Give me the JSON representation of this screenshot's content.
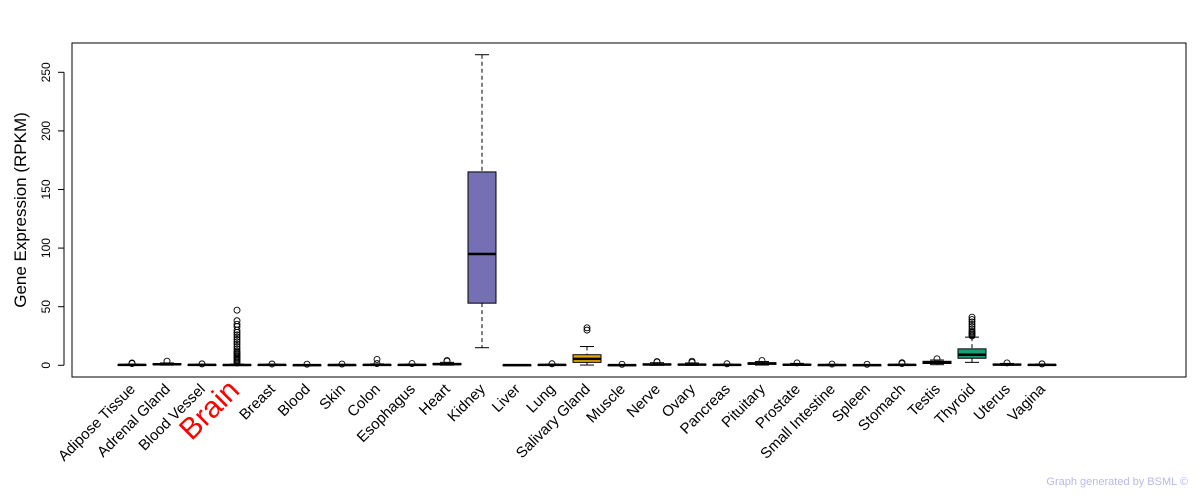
{
  "chart_data": {
    "type": "box",
    "ylabel": "Gene Expression (RPKM)",
    "ylim": [
      -10,
      275
    ],
    "yticks": [
      0,
      50,
      100,
      150,
      200,
      250
    ],
    "highlight": "Brain",
    "highlight_color": "#ff0000",
    "categories": [
      "Adipose Tissue",
      "Adrenal Gland",
      "Blood Vessel",
      "Brain",
      "Breast",
      "Blood",
      "Skin",
      "Colon",
      "Esophagus",
      "Heart",
      "Kidney",
      "Liver",
      "Lung",
      "Salivary Gland",
      "Muscle",
      "Nerve",
      "Ovary",
      "Pancreas",
      "Pituitary",
      "Prostate",
      "Small Intestine",
      "Spleen",
      "Stomach",
      "Testis",
      "Thyroid",
      "Uterus",
      "Vagina"
    ],
    "boxes": [
      {
        "name": "Adipose Tissue",
        "color": "#ffffff",
        "q1": 0.1,
        "median": 0.3,
        "q3": 0.6,
        "wlo": 0,
        "whi": 1.0,
        "outliers": [
          1.5,
          2.0
        ]
      },
      {
        "name": "Adrenal Gland",
        "color": "#ffffff",
        "q1": 0.5,
        "median": 0.9,
        "q3": 1.3,
        "wlo": 0.1,
        "whi": 2.0,
        "outliers": [
          3.5
        ]
      },
      {
        "name": "Blood Vessel",
        "color": "#ffffff",
        "q1": 0.1,
        "median": 0.3,
        "q3": 0.5,
        "wlo": 0,
        "whi": 0.9,
        "outliers": [
          1.2
        ]
      },
      {
        "name": "Brain",
        "color": "#ffffff",
        "q1": 0.1,
        "median": 0.2,
        "q3": 0.5,
        "wlo": 0,
        "whi": 1.0,
        "outliers": [
          2,
          3,
          4,
          5,
          6,
          7,
          8,
          9,
          10,
          11,
          12,
          14,
          16,
          18,
          20,
          22,
          24,
          26,
          28,
          30,
          33,
          35,
          38,
          47
        ]
      },
      {
        "name": "Breast",
        "color": "#ffffff",
        "q1": 0.1,
        "median": 0.3,
        "q3": 0.5,
        "wlo": 0,
        "whi": 0.9,
        "outliers": [
          1.1
        ]
      },
      {
        "name": "Blood",
        "color": "#ffffff",
        "q1": 0,
        "median": 0.1,
        "q3": 0.3,
        "wlo": 0,
        "whi": 0.6,
        "outliers": [
          0.9
        ]
      },
      {
        "name": "Skin",
        "color": "#ffffff",
        "q1": 0.1,
        "median": 0.2,
        "q3": 0.4,
        "wlo": 0,
        "whi": 0.8,
        "outliers": [
          1.0
        ]
      },
      {
        "name": "Colon",
        "color": "#ffffff",
        "q1": 0.1,
        "median": 0.3,
        "q3": 0.6,
        "wlo": 0,
        "whi": 1.2,
        "outliers": [
          1.5,
          5
        ]
      },
      {
        "name": "Esophagus",
        "color": "#ffffff",
        "q1": 0.1,
        "median": 0.3,
        "q3": 0.6,
        "wlo": 0,
        "whi": 1.0,
        "outliers": [
          1.5
        ]
      },
      {
        "name": "Heart",
        "color": "#ffffff",
        "q1": 0.5,
        "median": 1.0,
        "q3": 1.6,
        "wlo": 0.1,
        "whi": 2.5,
        "outliers": [
          3.5,
          4.0
        ]
      },
      {
        "name": "Kidney",
        "color": "#7570b3",
        "q1": 53,
        "median": 95,
        "q3": 165,
        "wlo": 15,
        "whi": 265,
        "outliers": []
      },
      {
        "name": "Liver",
        "color": "#ffffff",
        "q1": 0,
        "median": 0.1,
        "q3": 0.3,
        "wlo": 0,
        "whi": 0.6,
        "outliers": []
      },
      {
        "name": "Lung",
        "color": "#ffffff",
        "q1": 0.1,
        "median": 0.3,
        "q3": 0.6,
        "wlo": 0,
        "whi": 1.0,
        "outliers": [
          1.3
        ]
      },
      {
        "name": "Salivary Gland",
        "color": "#e6ab02",
        "q1": 2.5,
        "median": 5.5,
        "q3": 9,
        "wlo": 0.2,
        "whi": 16,
        "outliers": [
          30,
          32
        ]
      },
      {
        "name": "Muscle",
        "color": "#ffffff",
        "q1": 0,
        "median": 0.1,
        "q3": 0.3,
        "wlo": 0,
        "whi": 0.6,
        "outliers": [
          0.8
        ]
      },
      {
        "name": "Nerve",
        "color": "#ffffff",
        "q1": 0.3,
        "median": 0.7,
        "q3": 1.2,
        "wlo": 0,
        "whi": 2.2,
        "outliers": [
          2.8,
          3.2
        ]
      },
      {
        "name": "Ovary",
        "color": "#ffffff",
        "q1": 0.3,
        "median": 0.6,
        "q3": 1.0,
        "wlo": 0,
        "whi": 2.0,
        "outliers": [
          2.5,
          3.5
        ]
      },
      {
        "name": "Pancreas",
        "color": "#ffffff",
        "q1": 0.1,
        "median": 0.3,
        "q3": 0.6,
        "wlo": 0,
        "whi": 1.0,
        "outliers": [
          1.3
        ]
      },
      {
        "name": "Pituitary",
        "color": "#ffffff",
        "q1": 0.8,
        "median": 1.5,
        "q3": 2.2,
        "wlo": 0.2,
        "whi": 3.2,
        "outliers": [
          4.0
        ]
      },
      {
        "name": "Prostate",
        "color": "#ffffff",
        "q1": 0.2,
        "median": 0.5,
        "q3": 0.9,
        "wlo": 0,
        "whi": 1.6,
        "outliers": [
          2.0
        ]
      },
      {
        "name": "Small Intestine",
        "color": "#ffffff",
        "q1": 0.1,
        "median": 0.2,
        "q3": 0.4,
        "wlo": 0,
        "whi": 0.8,
        "outliers": [
          1.0
        ]
      },
      {
        "name": "Spleen",
        "color": "#ffffff",
        "q1": 0,
        "median": 0.1,
        "q3": 0.3,
        "wlo": 0,
        "whi": 0.6,
        "outliers": [
          0.8
        ]
      },
      {
        "name": "Stomach",
        "color": "#ffffff",
        "q1": 0.1,
        "median": 0.3,
        "q3": 0.6,
        "wlo": 0,
        "whi": 1.0,
        "outliers": [
          1.5,
          2.2
        ]
      },
      {
        "name": "Testis",
        "color": "#ffffff",
        "q1": 1.5,
        "median": 2.5,
        "q3": 3.4,
        "wlo": 0.5,
        "whi": 4.5,
        "outliers": [
          5.5
        ]
      },
      {
        "name": "Thyroid",
        "color": "#1b9e77",
        "q1": 6,
        "median": 9,
        "q3": 14,
        "wlo": 2.5,
        "whi": 24,
        "outliers": [
          25,
          26,
          27,
          28,
          29,
          31,
          33,
          35,
          37,
          39,
          41
        ]
      },
      {
        "name": "Uterus",
        "color": "#ffffff",
        "q1": 0.3,
        "median": 0.6,
        "q3": 1.0,
        "wlo": 0,
        "whi": 1.6,
        "outliers": [
          2.0
        ]
      },
      {
        "name": "Vagina",
        "color": "#ffffff",
        "q1": 0.1,
        "median": 0.3,
        "q3": 0.6,
        "wlo": 0,
        "whi": 1.0,
        "outliers": [
          1.2
        ]
      }
    ]
  },
  "footer": "Graph generated by BSML ©"
}
